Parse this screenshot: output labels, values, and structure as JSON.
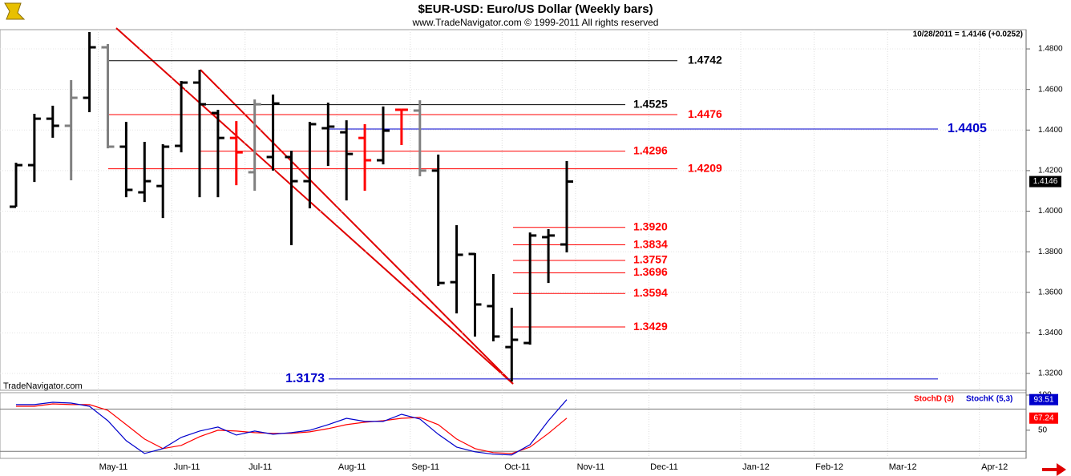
{
  "chart_data": [
    {
      "type": "ohlc",
      "title": "$EUR-USD:  Euro/US Dollar  (Weekly bars)",
      "subtitle": "www.TradeNavigator.com © 1999-2011 All rights reserved",
      "annotation": "10/28/2011 = 1.4146 (+0.0252)",
      "watermark": "TradeNavigator.com",
      "categories": [
        null,
        null,
        null,
        null,
        null,
        "May-11",
        null,
        null,
        null,
        "Jun-11",
        null,
        null,
        null,
        "Jul-11",
        null,
        null,
        null,
        null,
        "Aug-11",
        null,
        null,
        null,
        "Sep-11",
        null,
        null,
        null,
        null,
        "Oct-11",
        null,
        null,
        null,
        "Nov-11",
        null,
        null,
        null,
        "Dec-11",
        null,
        null,
        null,
        null,
        "Jan-12",
        null,
        null,
        null,
        "Feb-12",
        null,
        null,
        null,
        "Mar-12",
        null,
        null,
        null,
        null,
        "Apr-12",
        null,
        null
      ],
      "open": [
        1.4022,
        1.4227,
        1.4456,
        1.4421,
        1.4559,
        1.4808,
        1.4318,
        1.4093,
        1.4124,
        1.4322,
        1.4634,
        1.4484,
        1.4361,
        1.4192,
        1.4267,
        1.4267,
        1.4148,
        1.4409,
        1.4389,
        1.4361,
        1.4251,
        1.45,
        1.4496,
        1.42,
        1.365,
        1.3789,
        1.3532,
        1.333,
        1.335,
        1.3872,
        1.3836,
        null,
        null,
        null,
        null,
        null,
        null,
        null,
        null,
        null,
        null,
        null,
        null,
        null,
        null,
        null,
        null,
        null,
        null,
        null,
        null,
        null,
        null,
        null,
        null,
        null
      ],
      "high": [
        1.4239,
        1.448,
        1.452,
        1.4646,
        1.4883,
        1.4824,
        1.444,
        1.4342,
        1.433,
        1.4642,
        1.4697,
        1.45,
        1.4444,
        1.4551,
        1.4575,
        1.4298,
        1.444,
        1.4535,
        1.4448,
        1.4429,
        1.4516,
        1.45,
        1.4547,
        1.4279,
        1.3931,
        1.3793,
        1.369,
        1.3524,
        1.3895,
        1.3911,
        1.4247,
        null,
        null,
        null,
        null,
        null,
        null,
        null,
        null,
        null,
        null,
        null,
        null,
        null,
        null,
        null,
        null,
        null,
        null,
        null,
        null,
        null,
        null,
        null,
        null,
        null
      ],
      "low": [
        1.4022,
        1.4144,
        1.4362,
        1.4152,
        1.4488,
        1.431,
        1.4069,
        1.4045,
        1.3966,
        1.429,
        1.4069,
        1.4069,
        1.4128,
        1.4101,
        1.42,
        1.3832,
        1.4014,
        1.4223,
        1.4053,
        1.4101,
        1.4231,
        1.4326,
        1.4172,
        1.3631,
        1.3496,
        1.3382,
        1.3358,
        1.316,
        1.3342,
        1.3646,
        1.3797,
        null,
        null,
        null,
        null,
        null,
        null,
        null,
        null,
        null,
        null,
        null,
        null,
        null,
        null,
        null,
        null,
        null,
        null,
        null,
        null,
        null,
        null,
        null,
        null,
        null
      ],
      "close": [
        1.4227,
        1.4456,
        1.4421,
        1.4559,
        1.4808,
        1.4318,
        1.4105,
        1.4148,
        1.4318,
        1.4634,
        1.4527,
        1.4361,
        1.429,
        1.4527,
        1.4531,
        1.4148,
        1.4429,
        1.4417,
        1.4282,
        1.4251,
        1.4397,
        1.45,
        1.42,
        1.3646,
        1.3785,
        1.354,
        1.3382,
        1.3366,
        1.388,
        1.388,
        1.4146,
        null,
        null,
        null,
        null,
        null,
        null,
        null,
        null,
        null,
        null,
        null,
        null,
        null,
        null,
        null,
        null,
        null,
        null,
        null,
        null,
        null,
        null,
        null,
        null,
        null
      ],
      "bar_colors": [
        "#000000",
        "#000000",
        "#000000",
        "#808080",
        "#000000",
        "#808080",
        "#000000",
        "#000000",
        "#000000",
        "#000000",
        "#000000",
        "#000000",
        "#ff0000",
        "#808080",
        "#000000",
        "#000000",
        "#000000",
        "#000000",
        "#000000",
        "#ff0000",
        "#000000",
        "#ff0000",
        "#808080",
        "#000000",
        "#000000",
        "#000000",
        "#000000",
        "#000000",
        "#000000",
        "#000000",
        "#000000",
        null,
        null,
        null,
        null,
        null,
        null,
        null,
        null,
        null,
        null,
        null,
        null,
        null,
        null,
        null,
        null,
        null,
        null,
        null,
        null,
        null,
        null,
        null,
        null,
        null
      ],
      "ylim": [
        1.3125,
        1.4895
      ],
      "yticks": [
        {
          "value": 1.32,
          "label": "1.3200"
        },
        {
          "value": 1.34,
          "label": "1.3400"
        },
        {
          "value": 1.36,
          "label": "1.3600"
        },
        {
          "value": 1.38,
          "label": "1.3800"
        },
        {
          "value": 1.4,
          "label": "1.4000"
        },
        {
          "value": 1.42,
          "label": "1.4200"
        },
        {
          "value": 1.44,
          "label": "1.4400"
        },
        {
          "value": 1.46,
          "label": "1.4600"
        },
        {
          "value": 1.48,
          "label": "1.4800"
        }
      ],
      "grid": true,
      "levels": [
        {
          "value": 1.4742,
          "color": "#000000"
        },
        {
          "value": 1.4525,
          "color": "#000000"
        },
        {
          "value": 1.4476,
          "color": "#ff0000"
        },
        {
          "value": 1.4405,
          "color": "#0000cc"
        },
        {
          "value": 1.4296,
          "color": "#ff0000"
        },
        {
          "value": 1.4209,
          "color": "#ff0000"
        },
        {
          "value": 1.392,
          "label": "1.3920",
          "color": "#ff0000"
        },
        {
          "value": 1.3834,
          "color": "#ff0000"
        },
        {
          "value": 1.3757,
          "color": "#ff0000"
        },
        {
          "value": 1.3696,
          "color": "#ff0000"
        },
        {
          "value": 1.3594,
          "color": "#ff0000"
        },
        {
          "value": 1.3429,
          "color": "#ff0000"
        },
        {
          "value": 1.3173,
          "color": "#0000cc"
        }
      ]
    },
    {
      "type": "line",
      "series": [
        {
          "name": "StochD (3)",
          "color": "#ff0000",
          "values": [
            84.1,
            84.1,
            87.5,
            86.4,
            86.4,
            78.4,
            58.0,
            37.5,
            23.9,
            28.4,
            40.9,
            50.0,
            48.9,
            46.6,
            45.5,
            45.5,
            47.7,
            52.3,
            58.0,
            61.4,
            63.6,
            67.0,
            68.2,
            58.0,
            37.5,
            23.9,
            18.2,
            17.0,
            26.1,
            45.5,
            67.24,
            null,
            null,
            null,
            null,
            null,
            null,
            null,
            null,
            null,
            null,
            null,
            null,
            null,
            null,
            null,
            null,
            null,
            null,
            null,
            null,
            null,
            null,
            null,
            null,
            null
          ]
        },
        {
          "name": "StochK (5,3)",
          "color": "#0000cc",
          "values": [
            86.4,
            86.4,
            89.8,
            88.6,
            84.1,
            63.6,
            35.2,
            17.0,
            23.9,
            39.8,
            48.9,
            54.5,
            43.2,
            48.9,
            44.3,
            46.6,
            50.0,
            58.0,
            67.0,
            62.5,
            62.5,
            72.7,
            65.9,
            44.3,
            26.1,
            19.3,
            15.9,
            14.8,
            29.5,
            63.6,
            93.51,
            null,
            null,
            null,
            null,
            null,
            null,
            null,
            null,
            null,
            null,
            null,
            null,
            null,
            null,
            null,
            null,
            null,
            null,
            null,
            null,
            null,
            null,
            null,
            null,
            null
          ]
        }
      ],
      "ylim": [
        10,
        100
      ],
      "yticks": [
        50,
        100
      ],
      "levels": [
        20,
        80
      ]
    }
  ]
}
